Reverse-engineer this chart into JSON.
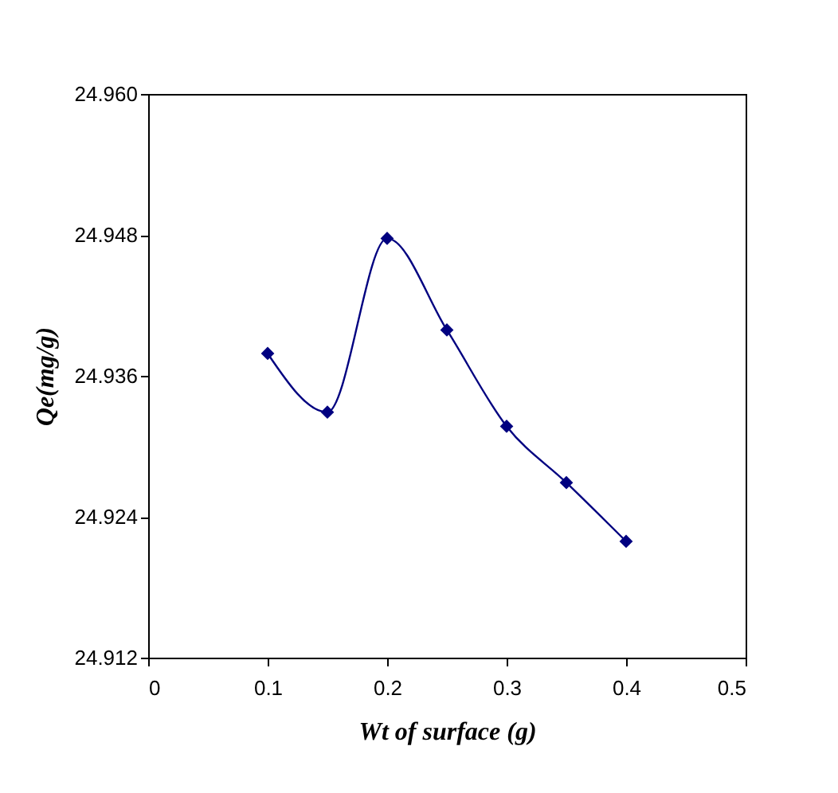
{
  "chart_data": {
    "type": "line",
    "xlabel": "Wt of surface (g)",
    "ylabel": "Qe(mg/g)",
    "x": [
      0.1,
      0.15,
      0.2,
      0.25,
      0.3,
      0.35,
      0.4
    ],
    "series": [
      {
        "color": "#000080",
        "values": [
          24.9379,
          24.9329,
          24.9477,
          24.9399,
          24.9317,
          24.9269,
          24.9219
        ]
      }
    ],
    "xlim": [
      0,
      0.5
    ],
    "xticks": [
      0,
      0.1,
      0.2,
      0.3,
      0.4,
      0.5
    ],
    "ylim": [
      24.912,
      24.96
    ],
    "yticks": [
      {
        "value": 24.912,
        "label": "24.912"
      },
      {
        "value": 24.924,
        "label": "24.924"
      },
      {
        "value": 24.936,
        "label": "24.936"
      },
      {
        "value": 24.948,
        "label": "24.948"
      },
      {
        "value": 24.96,
        "label": "24.960"
      }
    ],
    "grid": false,
    "legend": false,
    "marker": "diamond",
    "line_style": "solid"
  }
}
